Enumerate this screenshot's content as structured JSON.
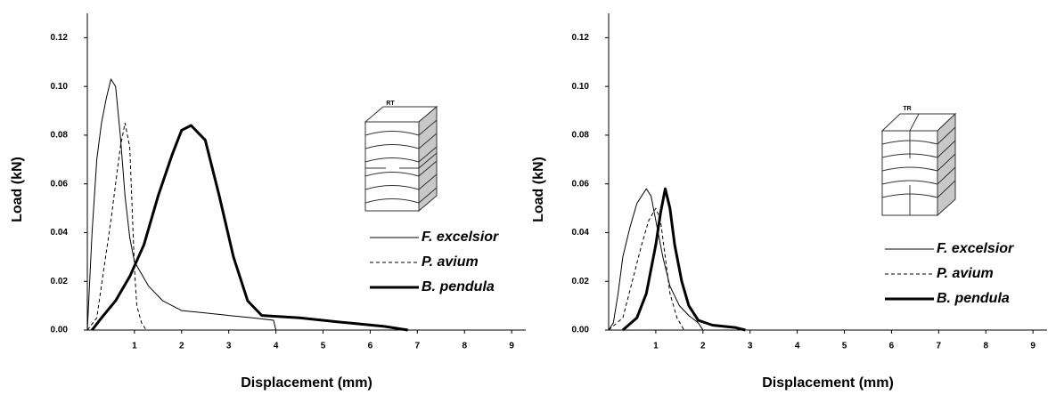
{
  "chart_data": [
    {
      "type": "line",
      "inset_label": "RT",
      "xlabel": "Displacement (mm)",
      "ylabel": "Load (kN)",
      "xlim": [
        0,
        9.3
      ],
      "xticks": [
        1,
        2,
        3,
        4,
        5,
        6,
        7,
        8,
        9
      ],
      "ylim": [
        0,
        0.13
      ],
      "yticks": [
        {
          "value": 0,
          "label": "0.00"
        },
        {
          "value": 0.02,
          "label": "0.02"
        },
        {
          "value": 0.04,
          "label": "0.04"
        },
        {
          "value": 0.06,
          "label": "0.06"
        },
        {
          "value": 0.08,
          "label": "0.08"
        },
        {
          "value": 0.1,
          "label": "0.10"
        },
        {
          "value": 0.12,
          "label": "0.12"
        }
      ],
      "legend": "right",
      "series": [
        {
          "name": "F. excelsior",
          "color": "#000000",
          "linestyle": "solid",
          "linewidth": 1,
          "x": [
            0,
            0.1,
            0.2,
            0.3,
            0.4,
            0.5,
            0.6,
            0.7,
            0.8,
            0.9,
            1.0,
            1.3,
            1.6,
            2.0,
            2.5,
            3.0,
            3.5,
            3.95,
            4.0
          ],
          "values": [
            0,
            0.04,
            0.07,
            0.085,
            0.095,
            0.103,
            0.1,
            0.08,
            0.055,
            0.038,
            0.028,
            0.018,
            0.012,
            0.008,
            0.007,
            0.006,
            0.005,
            0.004,
            0
          ]
        },
        {
          "name": "P. avium",
          "color": "#000000",
          "linestyle": "dashed",
          "linewidth": 1,
          "x": [
            0,
            0.2,
            0.35,
            0.5,
            0.6,
            0.7,
            0.8,
            0.9,
            0.95,
            1.0,
            1.05,
            1.15,
            1.25
          ],
          "values": [
            0,
            0.005,
            0.025,
            0.045,
            0.06,
            0.075,
            0.085,
            0.075,
            0.05,
            0.025,
            0.01,
            0.003,
            0
          ]
        },
        {
          "name": "B. pendula",
          "color": "#000000",
          "linestyle": "solid",
          "linewidth": 3,
          "x": [
            0.1,
            0.3,
            0.6,
            0.9,
            1.2,
            1.5,
            1.8,
            2.0,
            2.2,
            2.5,
            2.8,
            3.1,
            3.4,
            3.7,
            4.5,
            5.5,
            6.3,
            6.8
          ],
          "values": [
            0,
            0.005,
            0.012,
            0.022,
            0.035,
            0.055,
            0.072,
            0.082,
            0.084,
            0.078,
            0.055,
            0.03,
            0.012,
            0.006,
            0.005,
            0.003,
            0.0015,
            0
          ]
        }
      ]
    },
    {
      "type": "line",
      "inset_label": "TR",
      "xlabel": "Displacement (mm)",
      "ylabel": "Load (kN)",
      "xlim": [
        0,
        9.3
      ],
      "xticks": [
        1,
        2,
        3,
        4,
        5,
        6,
        7,
        8,
        9
      ],
      "ylim": [
        0,
        0.13
      ],
      "yticks": [
        {
          "value": 0,
          "label": "0.00"
        },
        {
          "value": 0.02,
          "label": "0.02"
        },
        {
          "value": 0.04,
          "label": "0.04"
        },
        {
          "value": 0.06,
          "label": "0.06"
        },
        {
          "value": 0.08,
          "label": "0.08"
        },
        {
          "value": 0.1,
          "label": "0.10"
        },
        {
          "value": 0.12,
          "label": "0.12"
        }
      ],
      "legend": "right",
      "series": [
        {
          "name": "F. excelsior",
          "color": "#000000",
          "linestyle": "solid",
          "linewidth": 1,
          "x": [
            0,
            0.1,
            0.2,
            0.3,
            0.45,
            0.6,
            0.8,
            0.9,
            1.0,
            1.15,
            1.3,
            1.5,
            1.7,
            1.9,
            2.0
          ],
          "values": [
            0,
            0.003,
            0.015,
            0.03,
            0.042,
            0.052,
            0.058,
            0.055,
            0.045,
            0.03,
            0.018,
            0.01,
            0.006,
            0.003,
            0
          ]
        },
        {
          "name": "P. avium",
          "color": "#000000",
          "linestyle": "dashed",
          "linewidth": 1,
          "x": [
            0,
            0.3,
            0.5,
            0.7,
            0.85,
            1.0,
            1.1,
            1.2,
            1.3,
            1.45,
            1.6
          ],
          "values": [
            0,
            0.005,
            0.02,
            0.035,
            0.045,
            0.05,
            0.045,
            0.03,
            0.015,
            0.005,
            0
          ]
        },
        {
          "name": "B. pendula",
          "color": "#000000",
          "linestyle": "solid",
          "linewidth": 3,
          "x": [
            0.3,
            0.6,
            0.8,
            1.0,
            1.1,
            1.2,
            1.3,
            1.4,
            1.55,
            1.7,
            1.9,
            2.2,
            2.7,
            2.9
          ],
          "values": [
            0,
            0.005,
            0.015,
            0.035,
            0.048,
            0.058,
            0.05,
            0.035,
            0.02,
            0.01,
            0.004,
            0.002,
            0.001,
            0
          ]
        }
      ]
    }
  ]
}
